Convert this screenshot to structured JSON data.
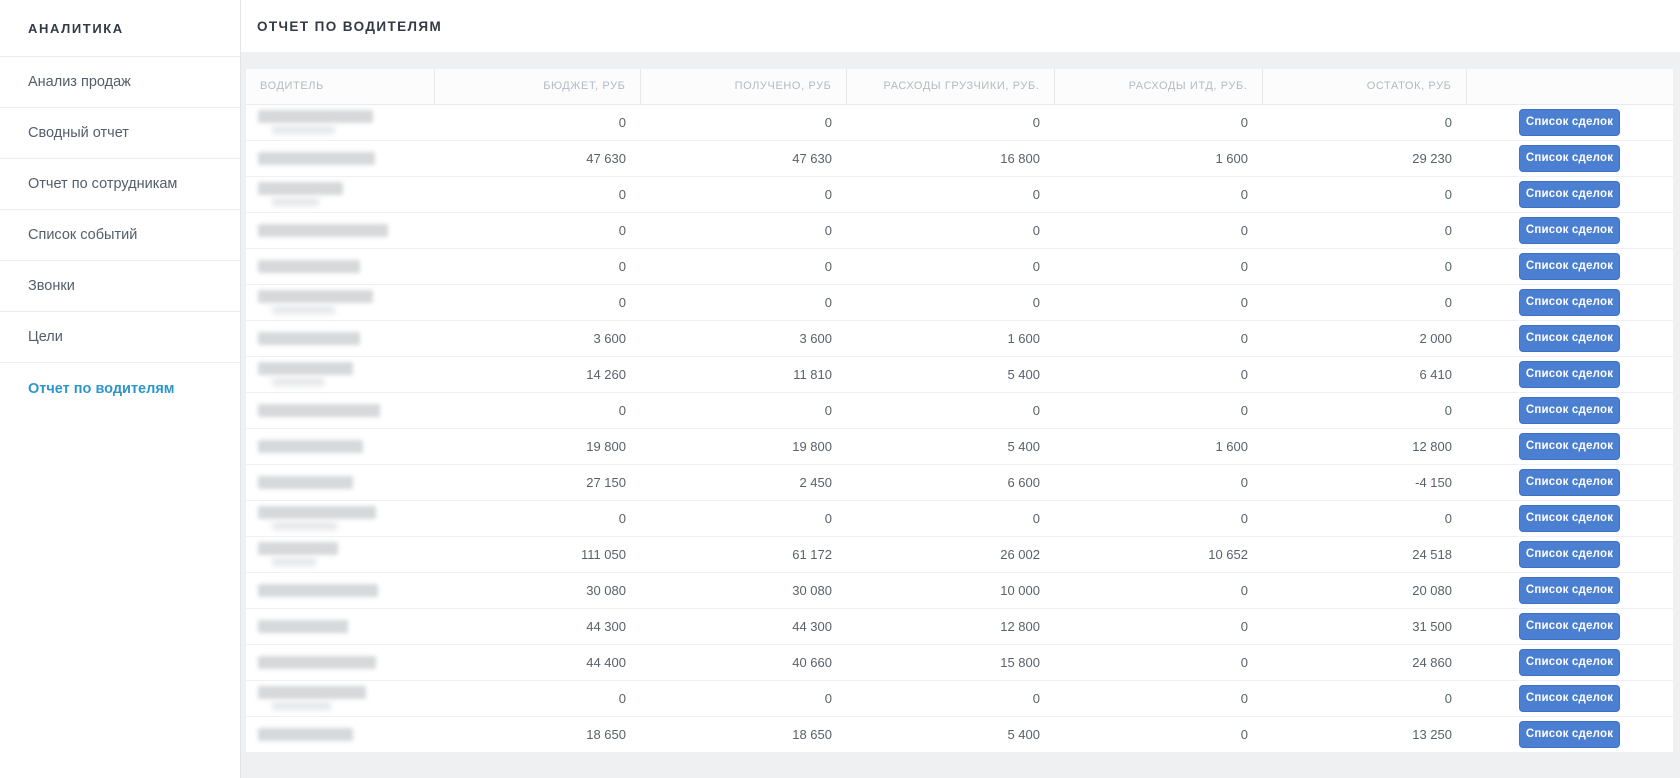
{
  "sidebar": {
    "header": "АНАЛИТИКА",
    "items": [
      {
        "name": "sales-analysis",
        "label": "Анализ продаж",
        "active": false
      },
      {
        "name": "summary-report",
        "label": "Сводный отчет",
        "active": false
      },
      {
        "name": "employees-report",
        "label": "Отчет по сотрудникам",
        "active": false
      },
      {
        "name": "events-list",
        "label": "Список событий",
        "active": false
      },
      {
        "name": "calls",
        "label": "Звонки",
        "active": false
      },
      {
        "name": "goals",
        "label": "Цели",
        "active": false
      },
      {
        "name": "drivers-report",
        "label": "Отчет по водителям",
        "active": true
      }
    ]
  },
  "page": {
    "title": "ОТЧЕТ ПО ВОДИТЕЛЯМ"
  },
  "table": {
    "columns": [
      "ВОДИТЕЛЬ",
      "БЮДЖЕТ, РУБ",
      "ПОЛУЧЕНО, РУБ",
      "РАСХОДЫ ГРУЗЧИКИ, РУБ.",
      "РАСХОДЫ ИТД, РУБ.",
      "ОСТАТОК, РУБ",
      ""
    ],
    "action_label": "Список сделок",
    "rows": [
      {
        "budget": "0",
        "received": "0",
        "loaders": "0",
        "other": "0",
        "rest": "0",
        "blur_w": 115,
        "blur_sub": true
      },
      {
        "budget": "47 630",
        "received": "47 630",
        "loaders": "16 800",
        "other": "1 600",
        "rest": "29 230",
        "blur_w": 117,
        "blur_sub": false
      },
      {
        "budget": "0",
        "received": "0",
        "loaders": "0",
        "other": "0",
        "rest": "0",
        "blur_w": 85,
        "blur_sub": true
      },
      {
        "budget": "0",
        "received": "0",
        "loaders": "0",
        "other": "0",
        "rest": "0",
        "blur_w": 130,
        "blur_sub": false
      },
      {
        "budget": "0",
        "received": "0",
        "loaders": "0",
        "other": "0",
        "rest": "0",
        "blur_w": 102,
        "blur_sub": false
      },
      {
        "budget": "0",
        "received": "0",
        "loaders": "0",
        "other": "0",
        "rest": "0",
        "blur_w": 115,
        "blur_sub": true
      },
      {
        "budget": "3 600",
        "received": "3 600",
        "loaders": "1 600",
        "other": "0",
        "rest": "2 000",
        "blur_w": 102,
        "blur_sub": false
      },
      {
        "budget": "14 260",
        "received": "11 810",
        "loaders": "5 400",
        "other": "0",
        "rest": "6 410",
        "blur_w": 95,
        "blur_sub": true
      },
      {
        "budget": "0",
        "received": "0",
        "loaders": "0",
        "other": "0",
        "rest": "0",
        "blur_w": 122,
        "blur_sub": false
      },
      {
        "budget": "19 800",
        "received": "19 800",
        "loaders": "5 400",
        "other": "1 600",
        "rest": "12 800",
        "blur_w": 105,
        "blur_sub": false
      },
      {
        "budget": "27 150",
        "received": "2 450",
        "loaders": "6 600",
        "other": "0",
        "rest": "-4 150",
        "blur_w": 95,
        "blur_sub": false
      },
      {
        "budget": "0",
        "received": "0",
        "loaders": "0",
        "other": "0",
        "rest": "0",
        "blur_w": 118,
        "blur_sub": true
      },
      {
        "budget": "111 050",
        "received": "61 172",
        "loaders": "26 002",
        "other": "10 652",
        "rest": "24 518",
        "blur_w": 80,
        "blur_sub": true
      },
      {
        "budget": "30 080",
        "received": "30 080",
        "loaders": "10 000",
        "other": "0",
        "rest": "20 080",
        "blur_w": 120,
        "blur_sub": false
      },
      {
        "budget": "44 300",
        "received": "44 300",
        "loaders": "12 800",
        "other": "0",
        "rest": "31 500",
        "blur_w": 90,
        "blur_sub": false
      },
      {
        "budget": "44 400",
        "received": "40 660",
        "loaders": "15 800",
        "other": "0",
        "rest": "24 860",
        "blur_w": 118,
        "blur_sub": false
      },
      {
        "budget": "0",
        "received": "0",
        "loaders": "0",
        "other": "0",
        "rest": "0",
        "blur_w": 108,
        "blur_sub": true
      },
      {
        "budget": "18 650",
        "received": "18 650",
        "loaders": "5 400",
        "other": "0",
        "rest": "13 250",
        "blur_w": 95,
        "blur_sub": false
      }
    ]
  },
  "colors": {
    "button_blue": "#4a7fd2",
    "active_link_blue": "#2d96c9",
    "page_background": "#eef0f1"
  }
}
